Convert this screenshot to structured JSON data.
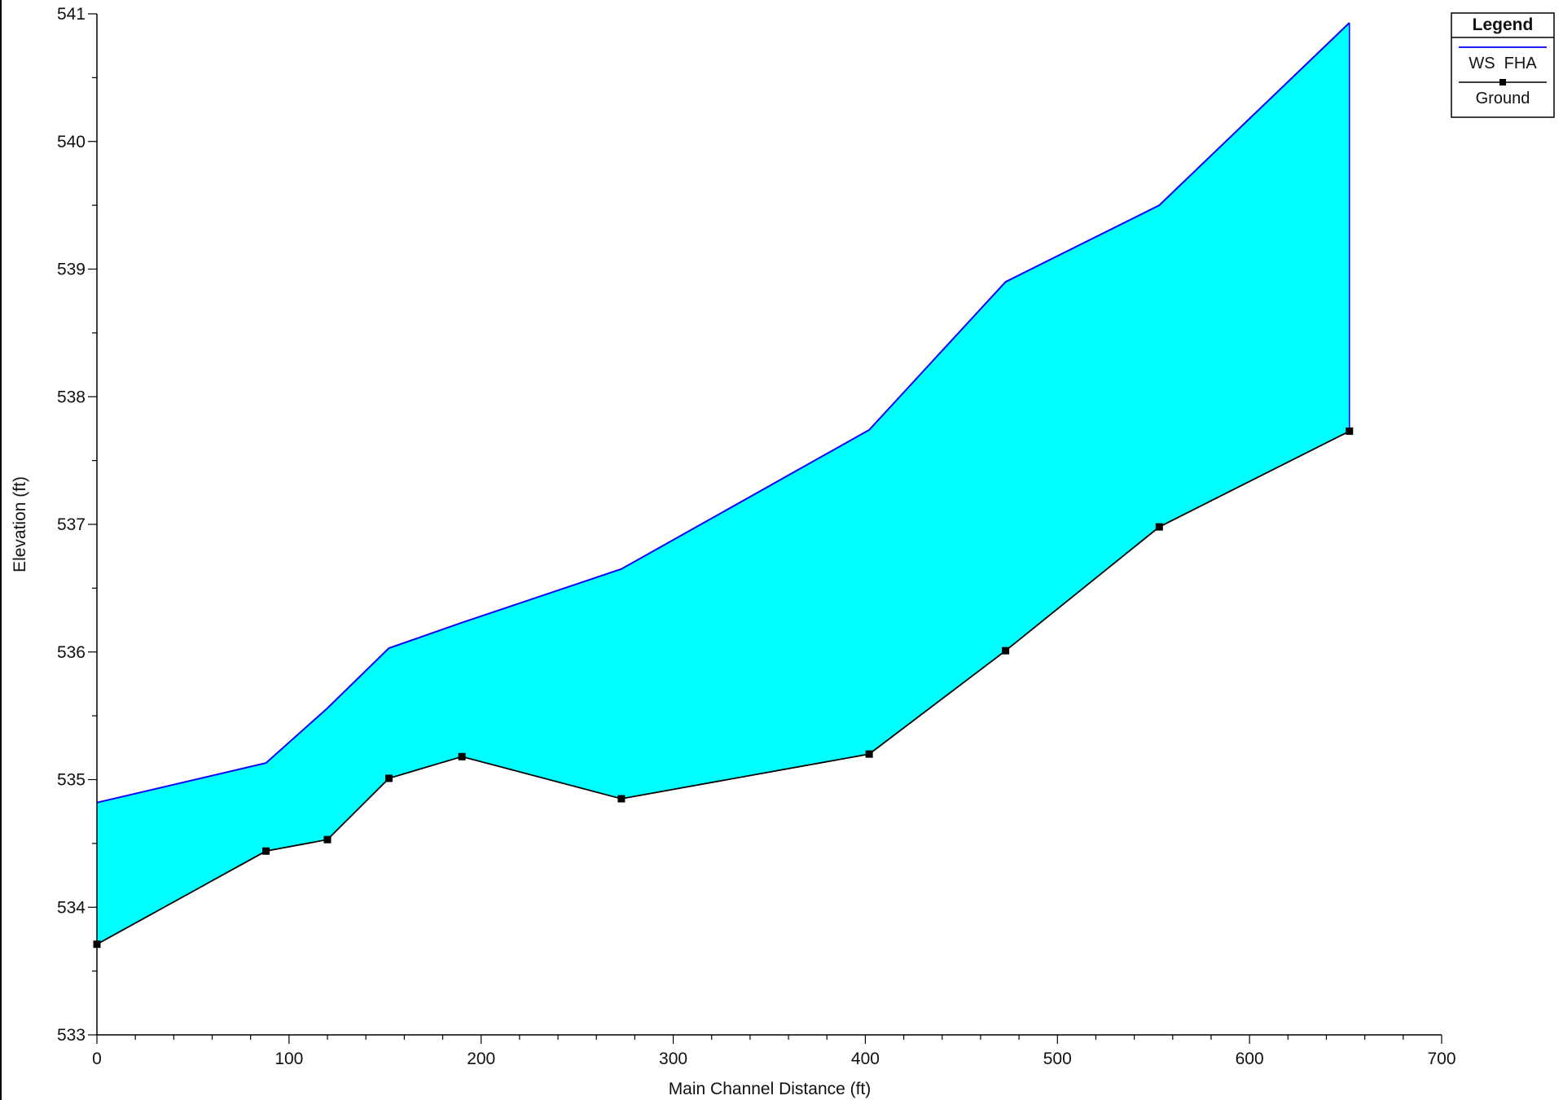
{
  "chart_data": {
    "type": "area",
    "title": "",
    "xlabel": "Main Channel Distance (ft)",
    "ylabel": "Elevation (ft)",
    "xlim": [
      0,
      700
    ],
    "ylim": [
      533,
      541
    ],
    "x_ticks": [
      0,
      100,
      200,
      300,
      400,
      500,
      600,
      700
    ],
    "y_ticks": [
      533,
      534,
      535,
      536,
      537,
      538,
      539,
      540,
      541
    ],
    "grid": false,
    "legend": {
      "title": "Legend",
      "placement": "top-right",
      "entries": [
        "WS  FHA",
        "Ground"
      ]
    },
    "series": [
      {
        "name": "WS  FHA",
        "color": "#0000ff",
        "fill_color": "#00ffff",
        "x": [
          0,
          88,
          120,
          152,
          190,
          273,
          402,
          473,
          553,
          652
        ],
        "y": [
          534.82,
          535.13,
          535.56,
          536.03,
          536.23,
          536.65,
          537.74,
          538.9,
          539.5,
          540.93
        ]
      },
      {
        "name": "Ground",
        "color": "#000000",
        "marker": "square",
        "x": [
          0,
          88,
          120,
          152,
          190,
          273,
          402,
          473,
          553,
          652
        ],
        "y": [
          533.71,
          534.44,
          534.53,
          535.01,
          535.18,
          534.85,
          535.2,
          536.01,
          536.98,
          537.73
        ]
      }
    ]
  }
}
